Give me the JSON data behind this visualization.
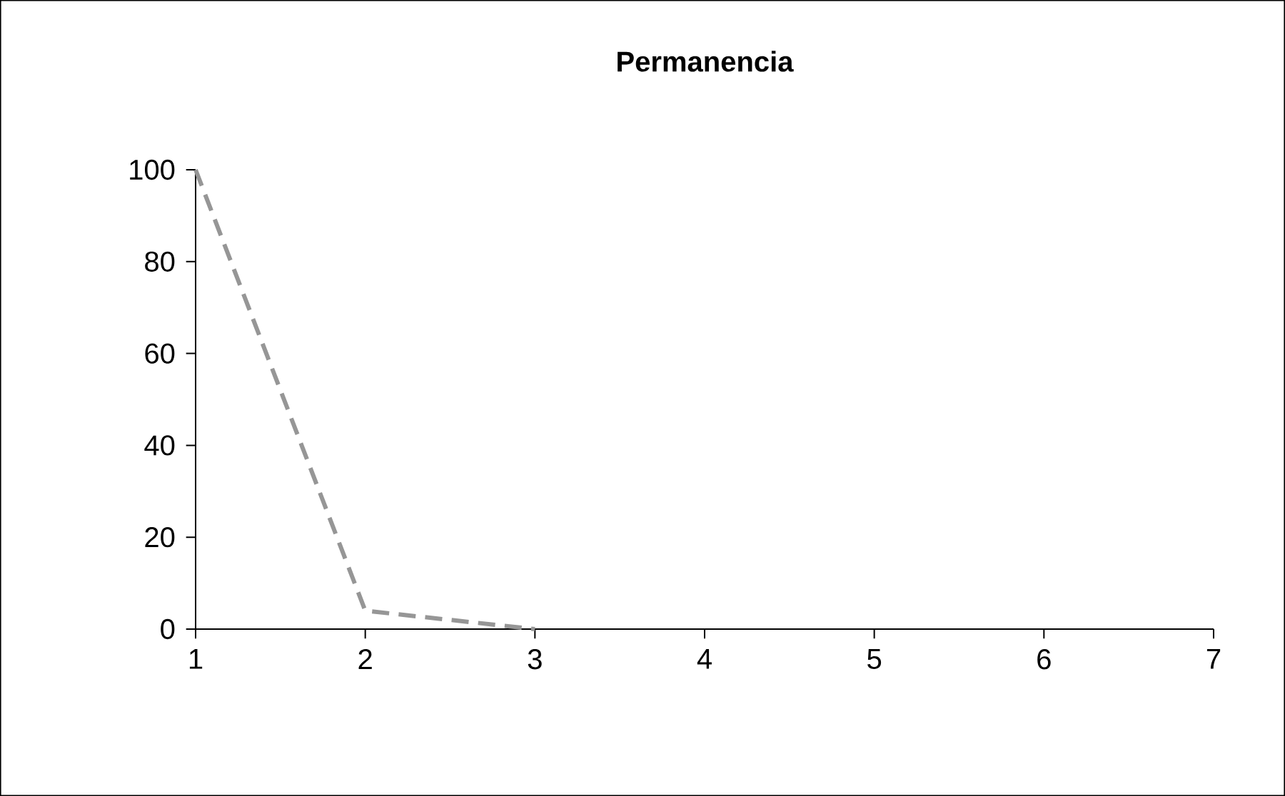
{
  "chart_data": {
    "type": "line",
    "title": "Permanencia",
    "x": [
      1,
      2,
      3
    ],
    "values": [
      100,
      4,
      0
    ],
    "color": "#969696",
    "line_style": "dashed",
    "marker": "none",
    "xlim": [
      1,
      7
    ],
    "xticks": [
      1,
      2,
      3,
      4,
      5,
      6,
      7
    ],
    "ylim": [
      0,
      100
    ],
    "yticks": [
      0,
      20,
      40,
      60,
      80,
      100
    ]
  }
}
